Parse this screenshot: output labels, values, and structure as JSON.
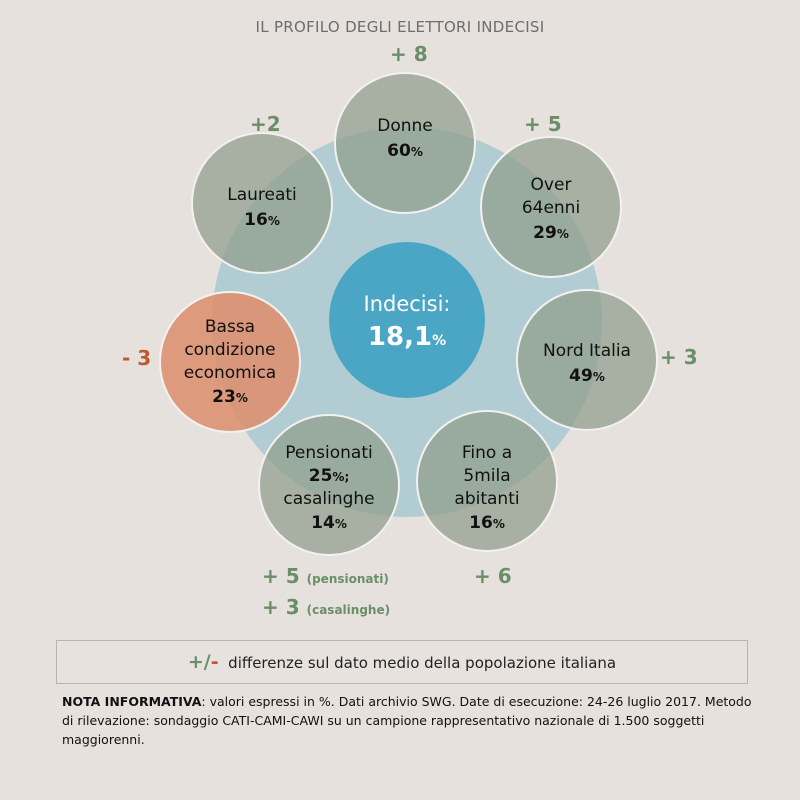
{
  "title": "IL PROFILO DEGLI ELETTORI INDECISI",
  "center": {
    "label": "Indecisi:",
    "value": "18,1",
    "unit": "%"
  },
  "groups": [
    {
      "id": "donne",
      "lines": [
        "Donne"
      ],
      "value": "60",
      "unit": "%",
      "delta": "+ 8",
      "type": "pos"
    },
    {
      "id": "over64",
      "lines": [
        "Over",
        "64enni"
      ],
      "value": "29",
      "unit": "%",
      "delta": "+ 5",
      "type": "pos"
    },
    {
      "id": "nord",
      "lines": [
        "Nord Italia"
      ],
      "value": "49",
      "unit": "%",
      "delta": "+ 3",
      "type": "pos"
    },
    {
      "id": "fino5mila",
      "lines": [
        "Fino a",
        "5mila",
        "abitanti"
      ],
      "value": "16",
      "unit": "%",
      "delta": "+ 6",
      "type": "pos"
    },
    {
      "id": "pensionati",
      "lines": [
        "Pensionati"
      ],
      "value": "25",
      "unit": "%;",
      "lines2": [
        "casalinghe"
      ],
      "value2": "14",
      "unit2": "%",
      "delta": "+ 5",
      "delta_note": "(pensionati)",
      "delta2": "+ 3",
      "delta2_note": "(casalinghe)",
      "type": "pos"
    },
    {
      "id": "bassa",
      "lines": [
        "Bassa",
        "condizione",
        "economica"
      ],
      "value": "23",
      "unit": "%",
      "delta": "- 3",
      "type": "neg"
    },
    {
      "id": "laureati",
      "lines": [
        "Laureati"
      ],
      "value": "16",
      "unit": "%",
      "delta": "+2",
      "type": "pos"
    }
  ],
  "legend": {
    "plus": "+",
    "slash": "/",
    "minus": "-",
    "text": "differenze sul dato medio della popolazione italiana"
  },
  "nota": {
    "label": "NOTA INFORMATIVA",
    "text": ": valori espressi in %. Dati archivio SWG. Date di esecuzione: 24-26 luglio 2017. Metodo di rilevazione: sondaggio CATI-CAMI-CAWI su un campione rappresentativo nazionale di 1.500 soggetti maggiorenni."
  },
  "colors": {
    "background": "#e6e1dd",
    "big_circle": "#a8c8d2",
    "center_circle": "#4ba6c6",
    "group_circle": "#8f9c8a",
    "negative_circle": "#dd8f6e",
    "positive_text": "#6a8f67",
    "negative_text": "#c1582c"
  }
}
